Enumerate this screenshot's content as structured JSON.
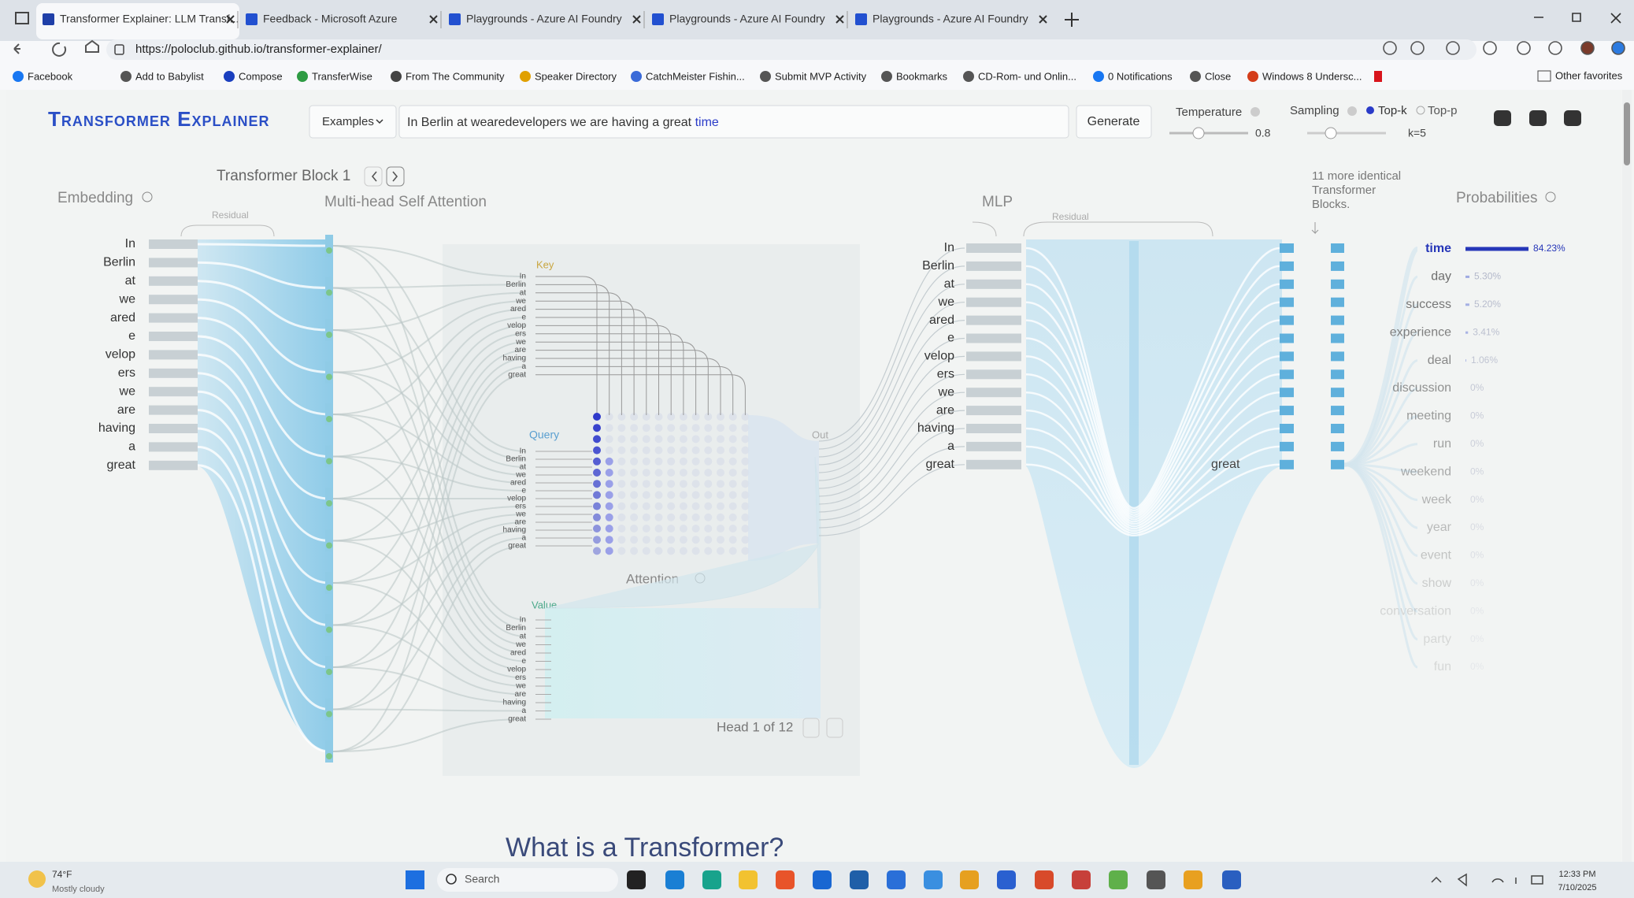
{
  "browser": {
    "tabs": [
      "Transformer Explainer: LLM Transf...",
      "Feedback - Microsoft Azure",
      "Playgrounds - Azure AI Foundry",
      "Playgrounds - Azure AI Foundry",
      "Playgrounds - Azure AI Foundry"
    ],
    "url": "https://poloclub.github.io/transformer-explainer/",
    "bookmarks": [
      "Facebook",
      "Add to Babylist",
      "Compose",
      "TransferWise",
      "From The Community",
      "Speaker Directory",
      "CatchMeister Fishin...",
      "Submit MVP Activity",
      "Bookmarks",
      "CD-Rom- und Onlin...",
      "0 Notifications",
      "Close",
      "Windows 8 Undersc..."
    ],
    "other_favorites": "Other favorites"
  },
  "header": {
    "title": "Transformer Explainer",
    "examples": "Examples",
    "prompt": "In Berlin at wearedevelopers we are having a great",
    "prompt_next": "time",
    "generate": "Generate",
    "temperature_label": "Temperature",
    "temperature": "0.8",
    "sampling_label": "Sampling",
    "top_k": "Top-k",
    "top_p": "Top-p",
    "k": "k=5"
  },
  "block": {
    "title": "Transformer Block 1",
    "embedding": "Embedding",
    "attention_title": "Multi-head Self Attention",
    "residual": "Residual",
    "mlp": "MLP",
    "more_blocks": [
      "11 more identical",
      "Transformer",
      "Blocks."
    ],
    "probabilities": "Probabilities",
    "key": "Key",
    "query": "Query",
    "value": "Value",
    "attention": "Attention",
    "out": "Out",
    "head": "Head 1 of 12",
    "last_token": "great"
  },
  "tokens": [
    "In",
    "Berlin",
    "at",
    "we",
    "ared",
    "e",
    "velop",
    "ers",
    "we",
    "are",
    "having",
    "a",
    "great"
  ],
  "probabilities": [
    {
      "token": "time",
      "value": 84.23,
      "label": "84.23%"
    },
    {
      "token": "day",
      "value": 5.3,
      "label": "5.30%"
    },
    {
      "token": "success",
      "value": 5.2,
      "label": "5.20%"
    },
    {
      "token": "experience",
      "value": 3.41,
      "label": "3.41%"
    },
    {
      "token": "deal",
      "value": 1.06,
      "label": "1.06%"
    },
    {
      "token": "discussion",
      "value": 0,
      "label": "0%"
    },
    {
      "token": "meeting",
      "value": 0,
      "label": "0%"
    },
    {
      "token": "run",
      "value": 0,
      "label": "0%"
    },
    {
      "token": "weekend",
      "value": 0,
      "label": "0%"
    },
    {
      "token": "week",
      "value": 0,
      "label": "0%"
    },
    {
      "token": "year",
      "value": 0,
      "label": "0%"
    },
    {
      "token": "event",
      "value": 0,
      "label": "0%"
    },
    {
      "token": "show",
      "value": 0,
      "label": "0%"
    },
    {
      "token": "conversation",
      "value": 0,
      "label": "0%"
    },
    {
      "token": "party",
      "value": 0,
      "label": "0%"
    },
    {
      "token": "fun",
      "value": 0,
      "label": "0%"
    }
  ],
  "section_heading": "What is a Transformer?",
  "taskbar": {
    "weather_temp": "74°F",
    "weather_desc": "Mostly cloudy",
    "search": "Search",
    "time": "12:33 PM",
    "date": "7/10/2025"
  }
}
